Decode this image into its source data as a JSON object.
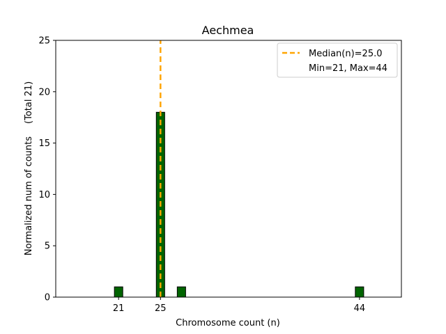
{
  "chart_data": {
    "type": "bar",
    "title": "Aechmea",
    "xlabel": "Chromosome count (n)",
    "ylabel": "Normalized num of counts",
    "ylabel_note": "(Total 21)",
    "xlim": [
      15,
      48
    ],
    "ylim": [
      0,
      25
    ],
    "y_ticks": [
      0,
      5,
      10,
      15,
      20,
      25
    ],
    "x_ticks": [
      21,
      25,
      44
    ],
    "bar_width": 0.8,
    "bar_color": "#006400",
    "bar_edge_color": "#000000",
    "bars": [
      {
        "x": 21,
        "value": 1
      },
      {
        "x": 25,
        "value": 18
      },
      {
        "x": 27,
        "value": 1
      },
      {
        "x": 44,
        "value": 1
      }
    ],
    "median": {
      "value": 25.0,
      "color": "#FFA500"
    },
    "legend": {
      "position": "top-right",
      "entries": [
        "Median(n)=25.0",
        "Min=21, Max=44"
      ]
    }
  }
}
